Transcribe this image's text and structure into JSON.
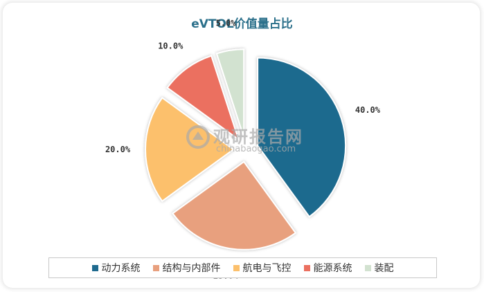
{
  "chart_data": {
    "type": "pie",
    "title": "eVTOL价值量占比",
    "slices": [
      {
        "name": "动力系统",
        "value": 40.0,
        "label": "40.0%",
        "color": "#1e6a8e"
      },
      {
        "name": "结构与内部件",
        "value": 25.0,
        "label": "25.0%",
        "color": "#e8a07e"
      },
      {
        "name": "航电与飞控",
        "value": 20.0,
        "label": "20.0%",
        "color": "#fcc06c"
      },
      {
        "name": "能源系统",
        "value": 10.0,
        "label": "10.0%",
        "color": "#eb7060"
      },
      {
        "name": "装配",
        "value": 5.0,
        "label": "5.0%",
        "color": "#d2e2d0"
      }
    ],
    "legend_position": "bottom",
    "exploded": true
  },
  "watermark": {
    "cn": "观研报告网",
    "en": "chinabaogao.com"
  }
}
